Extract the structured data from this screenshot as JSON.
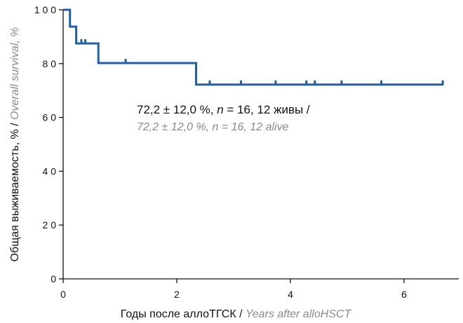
{
  "chart_data": {
    "type": "line",
    "subtype": "kaplan-meier",
    "title": "",
    "xlabel": {
      "main": "Годы после аллоТГСК / ",
      "alt": "Years after alloHSCT"
    },
    "ylabel": {
      "main": "Общая выживаемость, % / ",
      "alt": "Overall survival, %"
    },
    "xlim": [
      0,
      7
    ],
    "ylim": [
      0,
      100
    ],
    "x_ticks": [
      0,
      2,
      4,
      6
    ],
    "y_ticks": [
      0,
      20,
      40,
      60,
      80,
      100
    ],
    "x_tick_labels": [
      "0",
      "2",
      "4",
      "6"
    ],
    "y_tick_labels": [
      "0",
      "2 0",
      "4 0",
      "6 0",
      "8 0",
      "1 0 0"
    ],
    "grid": false,
    "series": [
      {
        "steps": [
          {
            "x": 0,
            "y": 100
          },
          {
            "x": 0.12,
            "y": 93.75
          },
          {
            "x": 0.23,
            "y": 87.5
          },
          {
            "x": 0.62,
            "y": 80.2
          },
          {
            "x": 2.34,
            "y": 72.2
          },
          {
            "x": 6.68,
            "y": 72.2
          }
        ],
        "censored": [
          {
            "x": 0.32,
            "y": 87.5
          },
          {
            "x": 0.39,
            "y": 87.5
          },
          {
            "x": 1.1,
            "y": 80.2
          },
          {
            "x": 2.58,
            "y": 72.2
          },
          {
            "x": 3.13,
            "y": 72.2
          },
          {
            "x": 3.74,
            "y": 72.2
          },
          {
            "x": 4.28,
            "y": 72.2
          },
          {
            "x": 4.43,
            "y": 72.2
          },
          {
            "x": 4.9,
            "y": 72.2
          },
          {
            "x": 5.6,
            "y": 72.2
          },
          {
            "x": 6.68,
            "y": 72.2
          }
        ]
      }
    ],
    "annotation": {
      "line1_prefix": "72,2 ± 12,0 %, ",
      "line1_n": "n",
      "line1_suffix": " = 16, 12 живы /",
      "line2": "72,2 ± 12,0  %, n = 16, 12 alive"
    },
    "colors": {
      "line": "#1f5fa3",
      "axis": "#111111",
      "alt_text": "#8a8a8a"
    }
  }
}
